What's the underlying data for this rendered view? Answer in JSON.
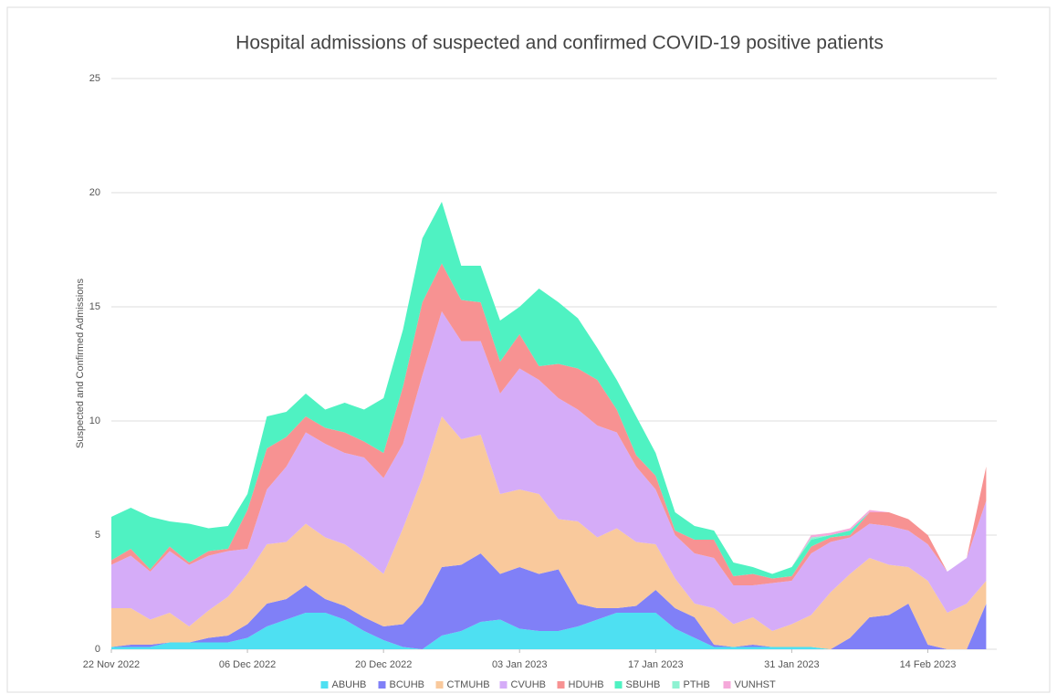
{
  "chart_data": {
    "type": "stacked-area",
    "title": "Hospital admissions of suspected and confirmed  COVID-19 positive patients",
    "y_label": "Suspected and Confirmed Admissions",
    "x": [
      "2022-11-22",
      "2022-11-24",
      "2022-11-26",
      "2022-11-28",
      "2022-11-30",
      "2022-12-02",
      "2022-12-04",
      "2022-12-06",
      "2022-12-08",
      "2022-12-10",
      "2022-12-12",
      "2022-12-14",
      "2022-12-16",
      "2022-12-18",
      "2022-12-20",
      "2022-12-22",
      "2022-12-24",
      "2022-12-26",
      "2022-12-28",
      "2022-12-30",
      "2023-01-01",
      "2023-01-03",
      "2023-01-05",
      "2023-01-07",
      "2023-01-09",
      "2023-01-11",
      "2023-01-13",
      "2023-01-15",
      "2023-01-17",
      "2023-01-19",
      "2023-01-21",
      "2023-01-23",
      "2023-01-25",
      "2023-01-27",
      "2023-01-29",
      "2023-01-31",
      "2023-02-02",
      "2023-02-04",
      "2023-02-06",
      "2023-02-08",
      "2023-02-10",
      "2023-02-12",
      "2023-02-14",
      "2023-02-16",
      "2023-02-18",
      "2023-02-20"
    ],
    "xlim": [
      "2022-11-22",
      "2023-02-21"
    ],
    "xticks": [
      {
        "value": "2022-11-22",
        "label": "22 Nov 2022"
      },
      {
        "value": "2022-12-06",
        "label": "06 Dec 2022"
      },
      {
        "value": "2022-12-20",
        "label": "20 Dec 2022"
      },
      {
        "value": "2023-01-03",
        "label": "03 Jan 2023"
      },
      {
        "value": "2023-01-17",
        "label": "17 Jan 2023"
      },
      {
        "value": "2023-01-31",
        "label": "31 Jan 2023"
      },
      {
        "value": "2023-02-14",
        "label": "14 Feb 2023"
      }
    ],
    "ylim": [
      0,
      25
    ],
    "yticks": [
      0,
      5,
      10,
      15,
      20,
      25
    ],
    "grid": true,
    "legend": "bottom",
    "series": [
      {
        "name": "ABUHB",
        "color": "#4ee0f2",
        "values": [
          0.1,
          0.1,
          0.1,
          0.3,
          0.3,
          0.3,
          0.3,
          0.5,
          1.0,
          1.3,
          1.6,
          1.6,
          1.3,
          0.8,
          0.4,
          0.1,
          0,
          0.6,
          0.8,
          1.2,
          1.3,
          0.9,
          0.8,
          0.8,
          1.0,
          1.3,
          1.6,
          1.6,
          1.6,
          0.9,
          0.5,
          0.1,
          0.1,
          0.1,
          0.1,
          0.1,
          0.1,
          0,
          0,
          0,
          0,
          0,
          0,
          0,
          0,
          0
        ]
      },
      {
        "name": "BCUHB",
        "color": "#8080f7",
        "values": [
          0,
          0.1,
          0.1,
          0,
          0,
          0.2,
          0.3,
          0.6,
          1.0,
          0.9,
          1.2,
          0.6,
          0.6,
          0.6,
          0.6,
          1.0,
          2.0,
          3.0,
          2.9,
          3.0,
          2.0,
          2.7,
          2.5,
          2.7,
          1.0,
          0.5,
          0.2,
          0.3,
          1.0,
          0.9,
          0.9,
          0.1,
          0,
          0.1,
          0,
          0,
          0,
          0,
          0.5,
          1.4,
          1.5,
          2.0,
          0.2,
          0,
          0,
          2.0
        ]
      },
      {
        "name": "CTMUHB",
        "color": "#f9c99c",
        "values": [
          1.7,
          1.6,
          1.1,
          1.3,
          0.7,
          1.2,
          1.7,
          2.2,
          2.6,
          2.5,
          2.7,
          2.7,
          2.7,
          2.6,
          2.3,
          4.2,
          5.5,
          6.6,
          5.5,
          5.2,
          3.5,
          3.4,
          3.5,
          2.2,
          3.6,
          3.1,
          3.5,
          2.8,
          2.0,
          1.3,
          0.6,
          1.6,
          1.0,
          1.2,
          0.7,
          1.0,
          1.4,
          2.5,
          2.8,
          2.6,
          2.2,
          1.6,
          2.8,
          1.6,
          2.0,
          1.0
        ]
      },
      {
        "name": "CVUHB",
        "color": "#d5acf8",
        "values": [
          1.9,
          2.3,
          2.1,
          2.7,
          2.7,
          2.4,
          2.0,
          1.1,
          2.4,
          3.3,
          4.0,
          4.1,
          4.0,
          4.4,
          4.2,
          3.7,
          4.5,
          4.6,
          4.3,
          4.1,
          4.4,
          5.3,
          5.0,
          5.3,
          4.9,
          4.9,
          4.2,
          3.3,
          2.4,
          1.9,
          2.2,
          2.2,
          1.7,
          1.4,
          2.1,
          1.9,
          2.7,
          2.2,
          1.6,
          1.5,
          1.7,
          1.6,
          1.6,
          1.8,
          2.0,
          3.5
        ]
      },
      {
        "name": "HDUHB",
        "color": "#f79292",
        "values": [
          0.2,
          0.3,
          0.1,
          0.2,
          0.1,
          0.2,
          0.1,
          1.7,
          1.8,
          1.3,
          0.7,
          0.7,
          0.9,
          0.7,
          1.1,
          2.5,
          3.2,
          2.1,
          1.8,
          1.7,
          1.4,
          1.5,
          0.6,
          1.5,
          1.8,
          2.0,
          1.0,
          0.5,
          0.6,
          0.2,
          0.6,
          0.8,
          0.4,
          0.5,
          0.2,
          0.2,
          0.3,
          0.2,
          0.1,
          0.5,
          0.6,
          0.5,
          0.4,
          0,
          0,
          1.5
        ]
      },
      {
        "name": "SBUHB",
        "color": "#4ff2c2",
        "values": [
          1.9,
          1.8,
          2.3,
          1.1,
          1.7,
          1.0,
          1.0,
          0.7,
          1.4,
          1.1,
          1.0,
          0.8,
          1.3,
          1.4,
          2.4,
          2.5,
          2.8,
          2.7,
          1.5,
          1.6,
          1.8,
          1.2,
          3.4,
          2.7,
          2.2,
          1.4,
          1.3,
          1.7,
          1.0,
          0.8,
          0.6,
          0.4,
          0.6,
          0.3,
          0.2,
          0.4,
          0.3,
          0.1,
          0.2,
          0,
          0,
          0,
          0,
          0,
          0,
          0
        ]
      },
      {
        "name": "PTHB",
        "color": "#8ef2d2",
        "values": [
          0,
          0,
          0,
          0,
          0,
          0,
          0,
          0,
          0,
          0,
          0,
          0,
          0,
          0,
          0,
          0,
          0,
          0,
          0,
          0,
          0,
          0,
          0,
          0,
          0,
          0,
          0,
          0,
          0,
          0,
          0,
          0,
          0,
          0,
          0,
          0,
          0.1,
          0,
          0,
          0,
          0,
          0,
          0,
          0,
          0,
          0
        ]
      },
      {
        "name": "VUNHST",
        "color": "#f5a9da",
        "values": [
          0,
          0,
          0,
          0,
          0,
          0,
          0,
          0,
          0,
          0,
          0,
          0,
          0,
          0,
          0,
          0,
          0,
          0,
          0,
          0,
          0,
          0,
          0,
          0,
          0,
          0,
          0,
          0,
          0,
          0,
          0,
          0,
          0,
          0,
          0,
          0,
          0.1,
          0.1,
          0.1,
          0.1,
          0,
          0,
          0,
          0,
          0,
          0
        ]
      }
    ]
  }
}
